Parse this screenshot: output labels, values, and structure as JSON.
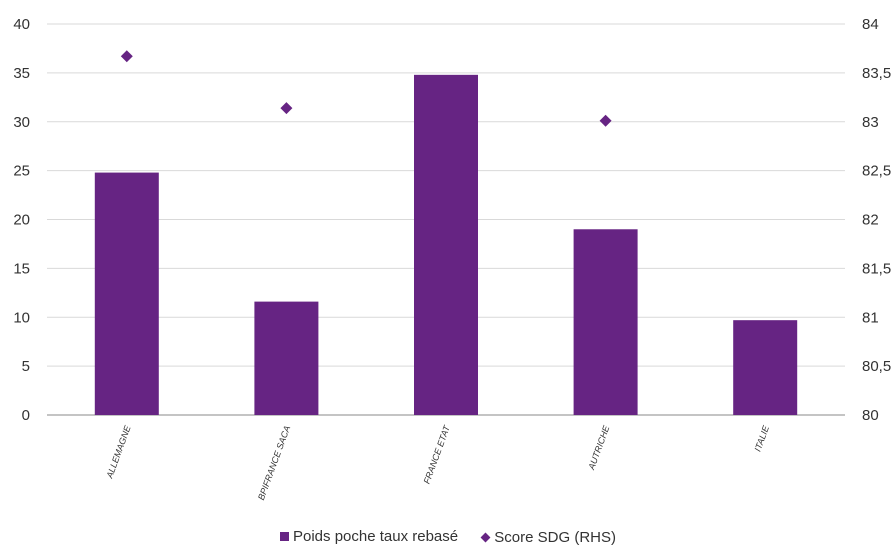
{
  "chart_data": {
    "type": "bar",
    "categories": [
      "ALLEMAGNE",
      "BPIFRANCE SACA",
      "FRANCE ETAT",
      "AUTRICHE",
      "ITALIE"
    ],
    "series": [
      {
        "name": "Poids poche taux rebasé",
        "type": "bar",
        "axis": "left",
        "values": [
          24.8,
          11.6,
          34.8,
          19.0,
          9.7
        ]
      },
      {
        "name": "Score SDG (RHS)",
        "type": "scatter",
        "axis": "right",
        "values": [
          83.67,
          83.14,
          null,
          83.01,
          null
        ]
      }
    ],
    "y_left": {
      "ylim": [
        0,
        40
      ],
      "ticks": [
        "0",
        "5",
        "10",
        "15",
        "20",
        "25",
        "30",
        "35",
        "40"
      ]
    },
    "y_right": {
      "ylim": [
        80,
        84
      ],
      "ticks": [
        "80",
        "80,5",
        "81",
        "81,5",
        "82",
        "82,5",
        "83",
        "83,5",
        "84"
      ]
    },
    "grid": true,
    "legend_placement": "bottom",
    "colors": {
      "bar": "#662483",
      "marker": "#662483",
      "grid": "#d9d9d9",
      "axis": "#333333"
    }
  },
  "legend": {
    "bar_label": "Poids poche taux rebasé",
    "marker_label": "Score SDG (RHS)"
  }
}
